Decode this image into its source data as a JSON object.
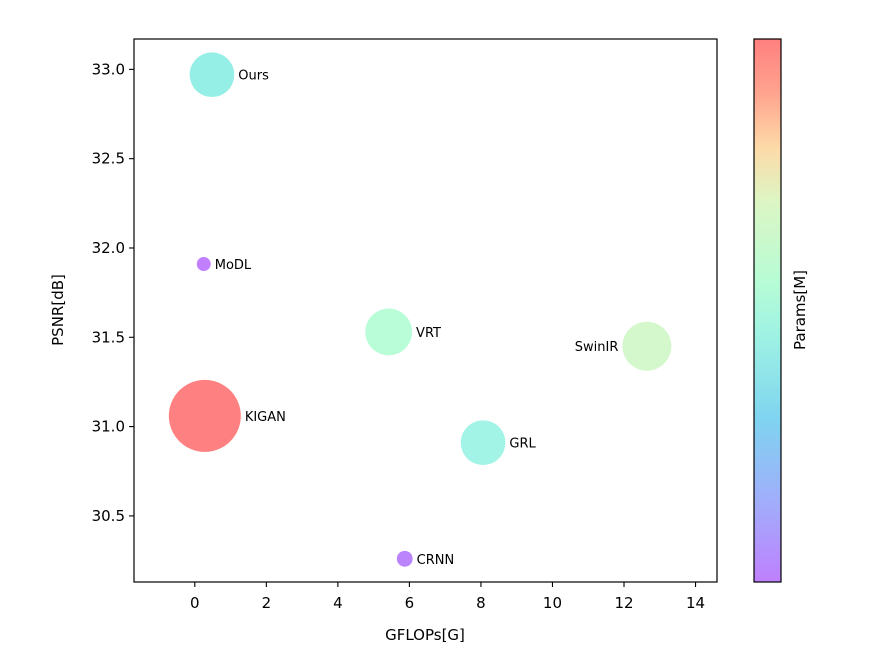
{
  "chart_data": {
    "type": "scatter",
    "title": "",
    "xlabel": "GFLOPs[G]",
    "ylabel": "PSNR[dB]",
    "xlim": [
      -1.7,
      14.6
    ],
    "ylim": [
      30.13,
      33.17
    ],
    "xticks": [
      0,
      2,
      4,
      6,
      8,
      10,
      12,
      14
    ],
    "xtick_labels": [
      "0",
      "2",
      "4",
      "6",
      "8",
      "10",
      "12",
      "14"
    ],
    "yticks": [
      30.5,
      31.0,
      31.5,
      32.0,
      32.5,
      33.0
    ],
    "ytick_labels": [
      "30.5",
      "31.0",
      "31.5",
      "32.0",
      "32.5",
      "33.0"
    ],
    "grid": false,
    "colorbar": {
      "label": "Params[M]",
      "colormap": "rainbow",
      "alpha": 0.5,
      "ticks": []
    },
    "points": [
      {
        "name": "Ours",
        "x": 0.48,
        "y": 32.97,
        "relative_size": 0.62,
        "color": "#96efe6",
        "label_side": "right"
      },
      {
        "name": "MoDL",
        "x": 0.25,
        "y": 31.91,
        "relative_size": 0.15,
        "color": "#c080ff",
        "label_side": "right"
      },
      {
        "name": "VRT",
        "x": 5.42,
        "y": 31.53,
        "relative_size": 0.65,
        "color": "#b8fcd8",
        "label_side": "right"
      },
      {
        "name": "SwinIR",
        "x": 12.64,
        "y": 31.45,
        "relative_size": 0.68,
        "color": "#d4f8cc",
        "label_side": "left"
      },
      {
        "name": "KIGAN",
        "x": 0.28,
        "y": 31.06,
        "relative_size": 1.0,
        "color": "#ff8080",
        "label_side": "right"
      },
      {
        "name": "GRL",
        "x": 8.06,
        "y": 30.91,
        "relative_size": 0.62,
        "color": "#a2f4e6",
        "label_side": "right"
      },
      {
        "name": "CRNN",
        "x": 5.87,
        "y": 30.26,
        "relative_size": 0.22,
        "color": "#bb84fc",
        "label_side": "right"
      }
    ]
  }
}
